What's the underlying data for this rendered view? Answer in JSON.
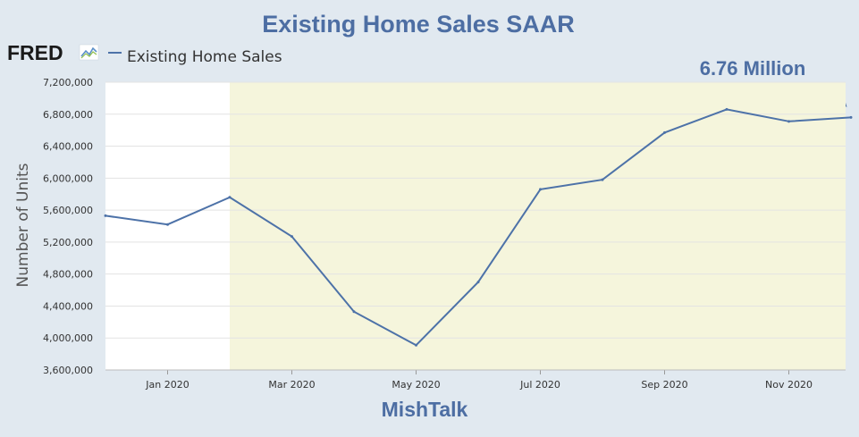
{
  "colors": {
    "background": "#e1e9f0",
    "plot_background": "#ffffff",
    "recession_shade": "#f5f5dc",
    "series_line": "#4d72a8",
    "accent_text": "#4d6ea3",
    "gridline": "#e3e3e3"
  },
  "logo": {
    "text": "FRED",
    "icon": "fred-chart-icon"
  },
  "chart_data": {
    "type": "line",
    "title": "Existing Home Sales SAAR",
    "xlabel": "",
    "ylabel": "Number of Units",
    "x": [
      "2019-12",
      "2020-01",
      "2020-02",
      "2020-03",
      "2020-04",
      "2020-05",
      "2020-06",
      "2020-07",
      "2020-08",
      "2020-09",
      "2020-10",
      "2020-11",
      "2020-12"
    ],
    "series": [
      {
        "name": "Existing Home Sales",
        "values": [
          5530000,
          5420000,
          5760000,
          5270000,
          4330000,
          3910000,
          4700000,
          5860000,
          5980000,
          6570000,
          6860000,
          6710000,
          6760000
        ]
      }
    ],
    "ylim": [
      3600000,
      7200000
    ],
    "yticks": [
      "3,600,000",
      "4,000,000",
      "4,400,000",
      "4,800,000",
      "5,200,000",
      "5,600,000",
      "6,000,000",
      "6,400,000",
      "6,800,000",
      "7,200,000"
    ],
    "xticks": [
      {
        "label": "Jan 2020",
        "x": "2020-01"
      },
      {
        "label": "Mar 2020",
        "x": "2020-03"
      },
      {
        "label": "May 2020",
        "x": "2020-05"
      },
      {
        "label": "Jul 2020",
        "x": "2020-07"
      },
      {
        "label": "Sep 2020",
        "x": "2020-09"
      },
      {
        "label": "Nov 2020",
        "x": "2020-11"
      }
    ],
    "shaded_region": {
      "start": "2020-02",
      "end": "2020-12",
      "label": ""
    },
    "annotation": {
      "text": "6.76 Million",
      "points_to": "2020-12"
    },
    "watermark": "MishTalk",
    "legend_placement": "top-left",
    "grid": true
  }
}
